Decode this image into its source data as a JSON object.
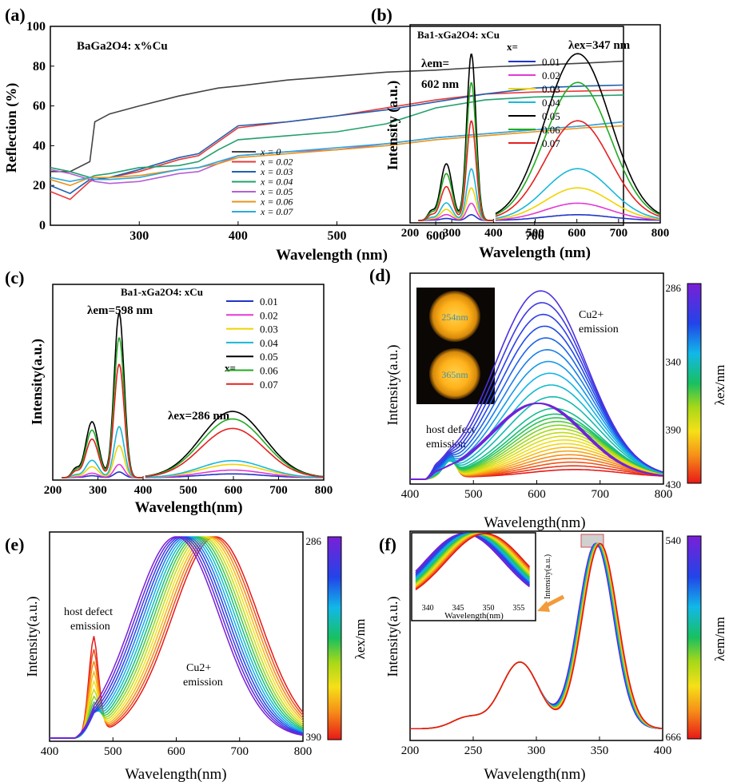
{
  "chart_data": [
    {
      "type": "line",
      "panel_label": "(a)",
      "annotation": "BaGa2O4: x%Cu",
      "xlabel": "Wavelength (nm)",
      "ylabel": "Reflection  (%)",
      "xlim": [
        210,
        790
      ],
      "ylim": [
        0,
        100
      ],
      "xticks": [
        "300",
        "400",
        "500",
        "600",
        "700"
      ],
      "yticks": [
        "0",
        "20",
        "40",
        "60",
        "80",
        "100"
      ],
      "legend_position": "lower-right",
      "x": [
        210,
        230,
        250,
        255,
        270,
        300,
        340,
        360,
        380,
        400,
        450,
        500,
        550,
        600,
        650,
        700,
        750,
        790
      ],
      "series": [
        {
          "name": "x = 0",
          "color": "#444444",
          "values": [
            27,
            27,
            32,
            52,
            56,
            60,
            65,
            67,
            69,
            70,
            73,
            75,
            77,
            78,
            79.5,
            80.5,
            81.5,
            82.5
          ]
        },
        {
          "name": "x = 0.02",
          "color": "#e83a3a",
          "values": [
            17,
            13,
            22,
            23,
            24,
            27,
            33,
            35,
            42,
            49,
            52,
            55,
            59,
            63,
            66,
            67,
            67.5,
            68
          ]
        },
        {
          "name": "x = 0.03",
          "color": "#2060b0",
          "values": [
            20,
            16,
            23,
            23,
            24,
            28,
            34,
            36,
            43,
            50,
            52,
            55,
            58,
            62,
            66,
            69,
            70,
            70.5
          ]
        },
        {
          "name": "x = 0.04",
          "color": "#22a06b",
          "values": [
            29,
            27,
            24,
            25,
            26,
            29,
            30,
            32,
            38,
            43,
            45,
            47,
            51,
            59,
            63,
            64.5,
            65,
            65.5
          ]
        },
        {
          "name": "x = 0.05",
          "color": "#b65fd6",
          "values": [
            28,
            26,
            23,
            22,
            21,
            22,
            26,
            27,
            31,
            35,
            37,
            38,
            41,
            44,
            46,
            48,
            50,
            52
          ]
        },
        {
          "name": "x = 0.06",
          "color": "#e8941d",
          "values": [
            23,
            20,
            24,
            24,
            24,
            25,
            28,
            29,
            31,
            34,
            36,
            38,
            40,
            43,
            45,
            47,
            49,
            50
          ]
        },
        {
          "name": "x = 0.07",
          "color": "#2fa8d8",
          "values": [
            24,
            22,
            24,
            23,
            23,
            24,
            28,
            29,
            32,
            35,
            37,
            39,
            41,
            44,
            46,
            48,
            50,
            52
          ]
        }
      ]
    },
    {
      "type": "line",
      "panel_label": "(b)",
      "title": "Ba1-xGa2O4: xCu",
      "legend_title": "x=",
      "annotations": [
        "λem=",
        "602 nm",
        "λex=347 nm"
      ],
      "xlabel": "Wavelength (nm)",
      "ylabel": "Intensity (a.u.)",
      "xlim": [
        200,
        800
      ],
      "xticks": [
        "200",
        "300",
        "400",
        "500",
        "600",
        "700",
        "800"
      ],
      "excitation_peaks_nm": [
        287,
        347
      ],
      "emission_peak_nm": 602,
      "series": [
        {
          "name": "0.01",
          "color": "#1f35c9",
          "excitation_peak": 0.03,
          "emission_peak": 0.03
        },
        {
          "name": "0.02",
          "color": "#e23ad6",
          "excitation_peak": 0.09,
          "emission_peak": 0.09
        },
        {
          "name": "0.03",
          "color": "#f0d400",
          "excitation_peak": 0.17,
          "emission_peak": 0.17
        },
        {
          "name": "0.04",
          "color": "#18b8d8",
          "excitation_peak": 0.27,
          "emission_peak": 0.27
        },
        {
          "name": "0.05",
          "color": "#000000",
          "excitation_peak": 0.87,
          "emission_peak": 0.87
        },
        {
          "name": "0.06",
          "color": "#22aa22",
          "excitation_peak": 0.72,
          "emission_peak": 0.72
        },
        {
          "name": "0.07",
          "color": "#e52020",
          "excitation_peak": 0.52,
          "emission_peak": 0.52
        }
      ]
    },
    {
      "type": "line",
      "panel_label": "(c)",
      "title": "Ba1-xGa2O4: xCu",
      "legend_title": "x=",
      "annotations": [
        "λem=598 nm",
        "λex=286 nm"
      ],
      "xlabel": "Wavelength(nm)",
      "ylabel": "Intensity(a.u.)",
      "xlim": [
        200,
        800
      ],
      "xticks": [
        "200",
        "300",
        "400",
        "500",
        "600",
        "700",
        "800"
      ],
      "excitation_peaks_nm": [
        287,
        347
      ],
      "emission_peak_nm": 598,
      "series": [
        {
          "name": "0.01",
          "color": "#1f35c9",
          "excitation_peak": 0.03,
          "emission_peak": 0.02
        },
        {
          "name": "0.02",
          "color": "#e23ad6",
          "excitation_peak": 0.07,
          "emission_peak": 0.04
        },
        {
          "name": "0.03",
          "color": "#f0d400",
          "excitation_peak": 0.17,
          "emission_peak": 0.07
        },
        {
          "name": "0.04",
          "color": "#18b8d8",
          "excitation_peak": 0.27,
          "emission_peak": 0.09
        },
        {
          "name": "0.05",
          "color": "#000000",
          "excitation_peak": 0.87,
          "emission_peak": 0.35
        },
        {
          "name": "0.06",
          "color": "#22aa22",
          "excitation_peak": 0.74,
          "emission_peak": 0.31
        },
        {
          "name": "0.07",
          "color": "#e52020",
          "excitation_peak": 0.6,
          "emission_peak": 0.26
        }
      ]
    },
    {
      "type": "line",
      "panel_label": "(d)",
      "annotations": [
        "Cu2+",
        "emission",
        "host defect",
        "emission"
      ],
      "inset_labels": [
        "254nm",
        "365nm"
      ],
      "xlabel": "Wavelength(nm)",
      "ylabel": "Intensity(a.u.)",
      "xlim": [
        400,
        800
      ],
      "xticks": [
        "400",
        "500",
        "600",
        "700",
        "800"
      ],
      "colorbar": {
        "label": "λex/nm",
        "ticks": [
          "286",
          "340",
          "390",
          "430"
        ],
        "range": [
          286,
          430
        ]
      },
      "host_defect_peak_nm": 462,
      "emission_peak_nm_range": [
        600,
        660
      ],
      "curve_count": 30
    },
    {
      "type": "line",
      "panel_label": "(e)",
      "annotations": [
        "host defect",
        "emission",
        "Cu2+",
        "emission"
      ],
      "xlabel": "Wavelength(nm)",
      "ylabel": "Intensity(a.u.)",
      "xlim": [
        400,
        800
      ],
      "xticks": [
        "400",
        "500",
        "600",
        "700",
        "800"
      ],
      "colorbar": {
        "label": "λex/nm",
        "ticks": [
          "286",
          "390"
        ],
        "range": [
          286,
          390
        ]
      },
      "normalized": true,
      "emission_peak_nm_range": [
        600,
        660
      ],
      "host_defect_peak_nm": 468,
      "curve_count": 16
    },
    {
      "type": "line",
      "panel_label": "(f)",
      "xlabel": "Wavelength(nm)",
      "ylabel": "Intensity(a.u.)",
      "xlim": [
        200,
        400
      ],
      "xticks": [
        "200",
        "250",
        "300",
        "350",
        "400"
      ],
      "colorbar": {
        "label": "λem/nm",
        "ticks": [
          "540",
          "666"
        ],
        "range": [
          540,
          666
        ]
      },
      "normalized": true,
      "peaks_nm": [
        287,
        347
      ],
      "inset": {
        "xlabel": "Wavelength(nm)",
        "ylabel": "Intensity(a.u.)",
        "xticks": [
          "340",
          "345",
          "350",
          "355"
        ]
      },
      "curve_count": 16
    }
  ]
}
